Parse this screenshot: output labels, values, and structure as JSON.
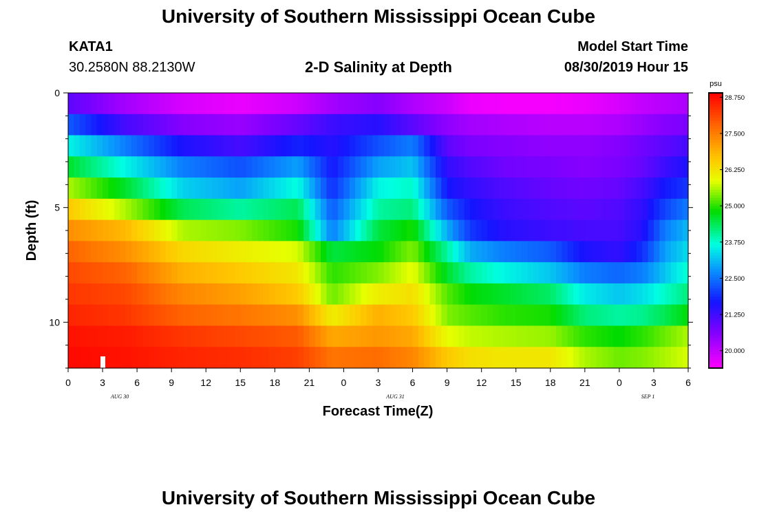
{
  "header": {
    "title": "University of Southern Mississippi Ocean Cube",
    "station": "KATA1",
    "coords": "30.2580N 88.2130W",
    "subtitle": "2-D Salinity at Depth",
    "model_start_label": "Model Start Time",
    "model_start_value": "08/30/2019 Hour 15"
  },
  "footer": {
    "title": "University of Southern Mississippi Ocean Cube"
  },
  "chart_data": {
    "type": "heatmap",
    "title": "2-D Salinity at Depth",
    "xlabel": "Forecast Time(Z)",
    "ylabel": "Depth (ft)",
    "x_ticks": [
      "0",
      "3",
      "6",
      "9",
      "12",
      "15",
      "18",
      "21",
      "0",
      "3",
      "6",
      "9",
      "12",
      "15",
      "18",
      "21",
      "0",
      "3",
      "6"
    ],
    "date_labels": [
      {
        "label": "AUG 30",
        "hour_index": 4.5
      },
      {
        "label": "AUG 31",
        "hour_index": 28.5
      },
      {
        "label": "SEP 1",
        "hour_index": 50.5
      }
    ],
    "x_range_hours": [
      0,
      54
    ],
    "y_ticks": [
      0,
      5,
      10
    ],
    "y_minor_step": 1,
    "y_range_ft": [
      0,
      12
    ],
    "depth_bins_ft": [
      0.5,
      1.5,
      2.5,
      3.5,
      4.5,
      5.5,
      6.5,
      7.5,
      8.5,
      9.5,
      10.5,
      11.5
    ],
    "colorbar": {
      "unit": "psu",
      "min": 19.4,
      "max": 28.9,
      "tick_values": [
        20.0,
        21.25,
        22.5,
        23.75,
        25.0,
        26.25,
        27.5,
        28.75
      ],
      "tick_labels": [
        "20.000",
        "21.250",
        "22.500",
        "23.750",
        "25.000",
        "26.250",
        "27.500",
        "28.750"
      ]
    },
    "series": [
      {
        "name": "layer 1 (0-1 ft)",
        "hours": [
          0,
          5,
          10,
          15,
          20,
          23,
          27,
          30,
          33,
          35,
          38,
          42,
          45,
          48,
          50,
          52,
          54
        ],
        "psu": [
          21.0,
          20.3,
          19.8,
          19.6,
          19.9,
          20.3,
          20.6,
          20.2,
          19.9,
          19.6,
          19.5,
          19.5,
          19.6,
          19.8,
          20.0,
          20.1,
          20.2
        ]
      },
      {
        "name": "layer 2 (1-2 ft)",
        "hours": [
          0,
          5,
          10,
          15,
          20,
          23,
          27,
          30,
          33,
          35,
          38,
          42,
          45,
          48,
          50,
          52,
          54
        ],
        "psu": [
          22.3,
          21.2,
          20.6,
          20.4,
          20.9,
          21.3,
          21.5,
          21.0,
          20.5,
          20.3,
          20.2,
          20.1,
          20.1,
          20.2,
          20.4,
          20.6,
          20.7
        ]
      },
      {
        "name": "layer 3 (2-3 ft)",
        "hours": [
          0,
          5,
          10,
          15,
          20,
          23,
          27,
          30,
          33,
          35,
          38,
          42,
          45,
          48,
          50,
          52,
          54
        ],
        "psu": [
          23.6,
          22.6,
          21.6,
          21.2,
          21.8,
          21.5,
          22.2,
          22.6,
          21.0,
          20.7,
          20.6,
          20.5,
          20.5,
          20.6,
          20.8,
          21.0,
          21.2
        ]
      },
      {
        "name": "layer 4 (3-4 ft)",
        "hours": [
          0,
          5,
          10,
          15,
          20,
          23,
          27,
          30,
          33,
          35,
          38,
          42,
          45,
          48,
          50,
          52,
          54
        ],
        "psu": [
          24.6,
          23.6,
          22.6,
          22.2,
          22.9,
          21.7,
          22.9,
          23.2,
          21.4,
          21.1,
          20.8,
          20.7,
          20.6,
          20.7,
          20.9,
          21.3,
          21.6
        ]
      },
      {
        "name": "layer 5 (4-5 ft)",
        "hours": [
          0,
          5,
          10,
          15,
          20,
          23,
          27,
          30,
          33,
          35,
          38,
          42,
          45,
          48,
          50,
          52,
          54
        ],
        "psu": [
          25.6,
          24.6,
          23.3,
          22.9,
          23.7,
          21.9,
          23.6,
          23.8,
          21.7,
          21.4,
          21.1,
          20.9,
          20.8,
          20.9,
          21.2,
          21.7,
          22.0
        ]
      },
      {
        "name": "layer 6 (5-6 ft)",
        "hours": [
          0,
          5,
          10,
          15,
          20,
          23,
          27,
          30,
          33,
          35,
          38,
          42,
          45,
          48,
          50,
          52,
          54
        ],
        "psu": [
          26.6,
          25.6,
          24.4,
          24.0,
          24.4,
          22.3,
          24.0,
          24.2,
          22.3,
          21.7,
          21.3,
          21.1,
          21.0,
          21.1,
          21.4,
          22.1,
          22.6
        ]
      },
      {
        "name": "layer 7 (6-7 ft)",
        "hours": [
          0,
          5,
          10,
          15,
          20,
          23,
          27,
          30,
          33,
          35,
          38,
          42,
          45,
          48,
          50,
          52,
          54
        ],
        "psu": [
          27.3,
          26.8,
          25.6,
          25.4,
          24.9,
          22.6,
          24.5,
          24.9,
          23.0,
          22.0,
          21.5,
          21.3,
          21.2,
          21.2,
          21.5,
          22.6,
          23.1
        ]
      },
      {
        "name": "layer 8 (7-8 ft)",
        "hours": [
          0,
          5,
          10,
          15,
          20,
          23,
          27,
          30,
          33,
          35,
          38,
          42,
          45,
          48,
          50,
          52,
          54
        ],
        "psu": [
          27.8,
          27.3,
          26.4,
          26.1,
          25.8,
          24.5,
          24.8,
          25.4,
          24.0,
          23.0,
          22.6,
          22.3,
          21.6,
          21.4,
          21.9,
          22.9,
          23.4
        ]
      },
      {
        "name": "layer 9 (8-9 ft)",
        "hours": [
          0,
          5,
          10,
          15,
          20,
          23,
          27,
          30,
          33,
          35,
          38,
          42,
          45,
          48,
          50,
          52,
          54
        ],
        "psu": [
          28.1,
          27.8,
          26.9,
          26.6,
          26.2,
          25.0,
          25.4,
          25.9,
          24.6,
          24.0,
          23.6,
          23.2,
          22.6,
          22.4,
          22.6,
          23.2,
          23.8
        ]
      },
      {
        "name": "layer 10 (9-10 ft)",
        "hours": [
          0,
          5,
          10,
          15,
          20,
          23,
          27,
          30,
          33,
          35,
          38,
          42,
          45,
          48,
          50,
          52,
          54
        ],
        "psu": [
          28.3,
          28.1,
          27.4,
          27.1,
          26.6,
          25.3,
          26.1,
          26.3,
          25.2,
          24.8,
          24.6,
          24.3,
          23.5,
          23.2,
          23.4,
          23.8,
          24.2
        ]
      },
      {
        "name": "layer 11 (10-11 ft)",
        "hours": [
          0,
          5,
          10,
          15,
          20,
          23,
          27,
          30,
          33,
          35,
          38,
          42,
          45,
          48,
          50,
          52,
          54
        ],
        "psu": [
          28.5,
          28.3,
          27.8,
          27.6,
          27.3,
          26.1,
          26.9,
          26.6,
          25.4,
          25.2,
          25.0,
          24.9,
          24.2,
          24.0,
          24.1,
          24.4,
          24.8
        ]
      },
      {
        "name": "layer 12 (11-12 ft)",
        "hours": [
          0,
          5,
          10,
          15,
          20,
          23,
          27,
          30,
          33,
          35,
          38,
          42,
          45,
          48,
          50,
          52,
          54
        ],
        "psu": [
          28.7,
          28.6,
          28.3,
          28.1,
          27.9,
          27.0,
          27.2,
          27.0,
          25.9,
          25.7,
          25.6,
          25.5,
          25.0,
          24.8,
          25.0,
          25.3,
          25.6
        ]
      },
      {
        "name": "layer 13 (12+ ft)",
        "hours": [
          0,
          5,
          10,
          15,
          20,
          23,
          27,
          30,
          33,
          35,
          38,
          42,
          45,
          48,
          50,
          52,
          54
        ],
        "psu": [
          28.8,
          28.7,
          28.5,
          28.4,
          28.2,
          27.6,
          27.7,
          27.4,
          26.6,
          26.3,
          26.2,
          26.2,
          25.6,
          25.3,
          25.4,
          25.6,
          25.8
        ]
      }
    ]
  }
}
